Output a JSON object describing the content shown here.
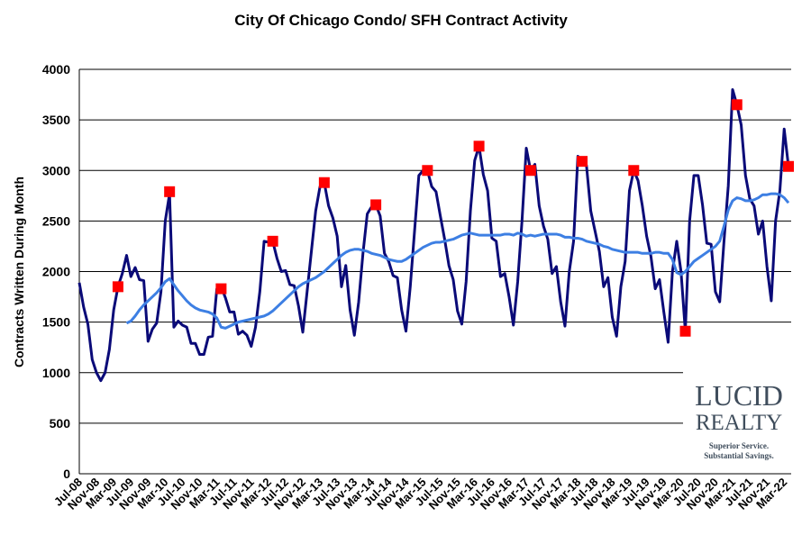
{
  "chart_data": {
    "type": "line",
    "title": "City Of Chicago Condo/ SFH Contract Activity",
    "y_label": "Contracts Written During Month",
    "categories": [
      "Jul-08",
      null,
      null,
      null,
      "Nov-08",
      null,
      null,
      null,
      "Mar-09",
      null,
      null,
      null,
      "Jul-09",
      null,
      null,
      null,
      "Nov-09",
      null,
      null,
      null,
      "Mar-10",
      null,
      null,
      null,
      "Jul-10",
      null,
      null,
      null,
      "Nov-10",
      null,
      null,
      null,
      "Mar-11",
      null,
      null,
      null,
      "Jul-11",
      null,
      null,
      null,
      "Nov-11",
      null,
      null,
      null,
      "Mar-12",
      null,
      null,
      null,
      "Jul-12",
      null,
      null,
      null,
      "Nov-12",
      null,
      null,
      null,
      "Mar-13",
      null,
      null,
      null,
      "Jul-13",
      null,
      null,
      null,
      "Nov-13",
      null,
      null,
      null,
      "Mar-14",
      null,
      null,
      null,
      "Jul-14",
      null,
      null,
      null,
      "Nov-14",
      null,
      null,
      null,
      "Mar-15",
      null,
      null,
      null,
      "Jul-15",
      null,
      null,
      null,
      "Nov-15",
      null,
      null,
      null,
      "Mar-16",
      null,
      null,
      null,
      "Jul-16",
      null,
      null,
      null,
      "Nov-16",
      null,
      null,
      null,
      "Mar-17",
      null,
      null,
      null,
      "Jul-17",
      null,
      null,
      null,
      "Nov-17",
      null,
      null,
      null,
      "Mar-18",
      null,
      null,
      null,
      "Jul-18",
      null,
      null,
      null,
      "Nov-18",
      null,
      null,
      null,
      "Mar-19",
      null,
      null,
      null,
      "Jul-19",
      null,
      null,
      null,
      "Nov-19",
      null,
      null,
      null,
      "Mar-20",
      null,
      null,
      null,
      "Jul-20",
      null,
      null,
      null,
      "Nov-20",
      null,
      null,
      null,
      "Mar-21",
      null,
      null,
      null,
      "Jul-21",
      null,
      null,
      null,
      "Nov-21",
      null,
      null,
      null,
      "Mar-22",
      null
    ],
    "series": [
      {
        "style": "line",
        "color": "#0a0a78",
        "values": [
          1890,
          1650,
          1480,
          1130,
          1000,
          920,
          1000,
          1230,
          1620,
          1850,
          1980,
          2160,
          1950,
          2040,
          1920,
          1910,
          1310,
          1430,
          1490,
          1800,
          2500,
          2770,
          1450,
          1510,
          1470,
          1450,
          1290,
          1290,
          1180,
          1180,
          1350,
          1360,
          1830,
          1850,
          1740,
          1600,
          1600,
          1380,
          1410,
          1370,
          1260,
          1450,
          1800,
          2300,
          2290,
          2300,
          2130,
          2000,
          2010,
          1870,
          1860,
          1660,
          1400,
          1800,
          2200,
          2600,
          2840,
          2880,
          2650,
          2530,
          2350,
          1850,
          2060,
          1620,
          1370,
          1700,
          2180,
          2570,
          2640,
          2660,
          2550,
          2180,
          2100,
          1960,
          1940,
          1620,
          1410,
          1850,
          2400,
          2950,
          3000,
          3000,
          2840,
          2790,
          2550,
          2320,
          2060,
          1920,
          1610,
          1480,
          1900,
          2600,
          3100,
          3240,
          2960,
          2800,
          2330,
          2300,
          1950,
          1980,
          1750,
          1470,
          1900,
          2500,
          3220,
          3000,
          3060,
          2650,
          2450,
          2320,
          1980,
          2050,
          1700,
          1460,
          2000,
          2300,
          3140,
          3090,
          3050,
          2600,
          2400,
          2200,
          1850,
          1940,
          1550,
          1360,
          1850,
          2100,
          2800,
          3000,
          2900,
          2650,
          2350,
          2150,
          1830,
          1920,
          1600,
          1300,
          2000,
          2300,
          2000,
          1410,
          2500,
          2950,
          2950,
          2660,
          2280,
          2270,
          1800,
          1700,
          2300,
          2850,
          3800,
          3650,
          3450,
          2950,
          2720,
          2650,
          2370,
          2500,
          2050,
          1710,
          2500,
          2800,
          3410,
          3040
        ]
      },
      {
        "style": "line",
        "color": "#3d7fe3",
        "values": [
          null,
          null,
          null,
          null,
          null,
          null,
          null,
          null,
          null,
          null,
          null,
          1490,
          1510,
          1560,
          1620,
          1670,
          1710,
          1750,
          1790,
          1840,
          1900,
          1930,
          1870,
          1810,
          1760,
          1710,
          1670,
          1640,
          1620,
          1610,
          1600,
          1580,
          1540,
          1450,
          1440,
          1460,
          1480,
          1500,
          1510,
          1520,
          1530,
          1540,
          1550,
          1560,
          1580,
          1610,
          1650,
          1690,
          1730,
          1770,
          1810,
          1850,
          1880,
          1900,
          1920,
          1940,
          1970,
          2000,
          2040,
          2080,
          2120,
          2160,
          2190,
          2210,
          2220,
          2220,
          2210,
          2200,
          2180,
          2170,
          2160,
          2140,
          2120,
          2110,
          2100,
          2100,
          2120,
          2150,
          2180,
          2210,
          2240,
          2260,
          2280,
          2290,
          2290,
          2300,
          2310,
          2320,
          2340,
          2360,
          2370,
          2380,
          2370,
          2360,
          2360,
          2360,
          2360,
          2360,
          2360,
          2370,
          2370,
          2360,
          2380,
          2370,
          2350,
          2360,
          2350,
          2360,
          2370,
          2370,
          2370,
          2370,
          2360,
          2340,
          2340,
          2330,
          2330,
          2320,
          2300,
          2290,
          2280,
          2270,
          2250,
          2240,
          2220,
          2210,
          2200,
          2190,
          2190,
          2190,
          2190,
          2180,
          2180,
          2180,
          2190,
          2190,
          2180,
          2180,
          2120,
          1990,
          1970,
          2000,
          2050,
          2100,
          2130,
          2160,
          2190,
          2220,
          2250,
          2300,
          2450,
          2610,
          2700,
          2730,
          2720,
          2700,
          2700,
          2710,
          2730,
          2760,
          2760,
          2770,
          2770,
          2760,
          2730,
          2680
        ]
      },
      {
        "style": "marker",
        "color": "#ff0000",
        "values": [
          null,
          null,
          null,
          null,
          null,
          null,
          null,
          null,
          null,
          1850,
          null,
          null,
          null,
          null,
          null,
          null,
          null,
          null,
          null,
          null,
          null,
          2790,
          null,
          null,
          null,
          null,
          null,
          null,
          null,
          null,
          null,
          null,
          null,
          1830,
          null,
          null,
          null,
          null,
          null,
          null,
          null,
          null,
          null,
          null,
          null,
          2300,
          null,
          null,
          null,
          null,
          null,
          null,
          null,
          null,
          null,
          null,
          null,
          2880,
          null,
          null,
          null,
          null,
          null,
          null,
          null,
          null,
          null,
          null,
          null,
          2660,
          null,
          null,
          null,
          null,
          null,
          null,
          null,
          null,
          null,
          null,
          null,
          3000,
          null,
          null,
          null,
          null,
          null,
          null,
          null,
          null,
          null,
          null,
          null,
          3240,
          null,
          null,
          null,
          null,
          null,
          null,
          null,
          null,
          null,
          null,
          null,
          3000,
          null,
          null,
          null,
          null,
          null,
          null,
          null,
          null,
          null,
          null,
          null,
          3090,
          null,
          null,
          null,
          null,
          null,
          null,
          null,
          null,
          null,
          null,
          null,
          3000,
          null,
          null,
          null,
          null,
          null,
          null,
          null,
          null,
          null,
          null,
          null,
          1410,
          null,
          null,
          null,
          null,
          null,
          null,
          null,
          null,
          null,
          null,
          null,
          3650,
          null,
          null,
          null,
          null,
          null,
          null,
          null,
          null,
          null,
          null,
          null,
          3040
        ]
      }
    ],
    "ylim": [
      0,
      4000
    ],
    "yticks": [
      0,
      500,
      1000,
      1500,
      2000,
      2500,
      3000,
      3500,
      4000
    ],
    "grid": true,
    "logo": {
      "name": "LUCID",
      "subname": "REALTY",
      "tagline": [
        "Superior Service.",
        "Substantial Savings."
      ]
    }
  }
}
